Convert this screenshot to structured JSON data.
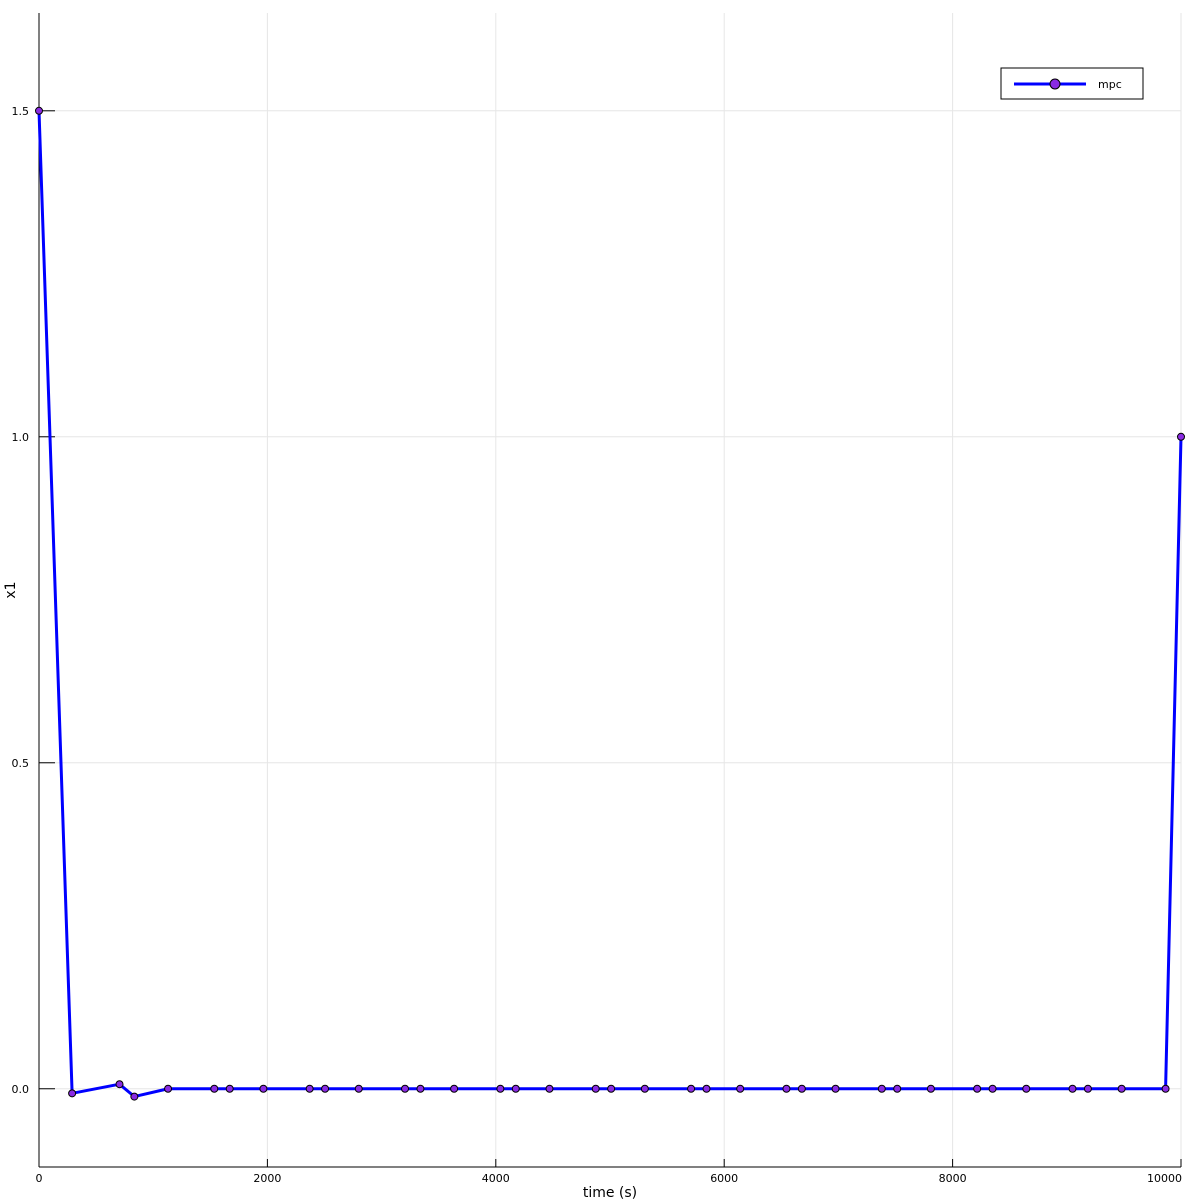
{
  "chart_data": {
    "type": "line",
    "title": "",
    "xlabel": "time (s)",
    "ylabel": "x1",
    "xlim": [
      0,
      10000
    ],
    "ylim": [
      -0.12,
      1.65
    ],
    "xticks": [
      0,
      2000,
      4000,
      6000,
      8000,
      10000
    ],
    "xtick_labels": [
      "0",
      "2000",
      "4000",
      "6000",
      "8000",
      "10000"
    ],
    "yticks": [
      0.0,
      0.5,
      1.0,
      1.5
    ],
    "ytick_labels": [
      "0.0",
      "0.5",
      "1.0",
      "1.5"
    ],
    "grid": true,
    "legend_position": "top-right",
    "colors": {
      "line": "#0000ff",
      "marker_fill": "#8a2be2",
      "marker_edge": "#000000",
      "grid": "#e6e6e6"
    },
    "series": [
      {
        "name": "mpc",
        "marker": "circle",
        "x": [
          0,
          290,
          705,
          835,
          1130,
          1535,
          1670,
          1965,
          2370,
          2505,
          2800,
          3205,
          3340,
          3635,
          4040,
          4175,
          4470,
          4875,
          5010,
          5305,
          5710,
          5845,
          6140,
          6545,
          6680,
          6975,
          7380,
          7515,
          7810,
          8215,
          8350,
          8645,
          9050,
          9185,
          9480,
          9865,
          10000
        ],
        "y": [
          1.5,
          -0.007,
          0.007,
          -0.012,
          0.0,
          0.0,
          0.0,
          0.0,
          0.0,
          0.0,
          0.0,
          0.0,
          0.0,
          0.0,
          0.0,
          0.0,
          0.0,
          0.0,
          0.0,
          0.0,
          0.0,
          0.0,
          0.0,
          0.0,
          0.0,
          0.0,
          0.0,
          0.0,
          0.0,
          0.0,
          0.0,
          0.0,
          0.0,
          0.0,
          0.0,
          0.0,
          1.0
        ]
      }
    ]
  }
}
